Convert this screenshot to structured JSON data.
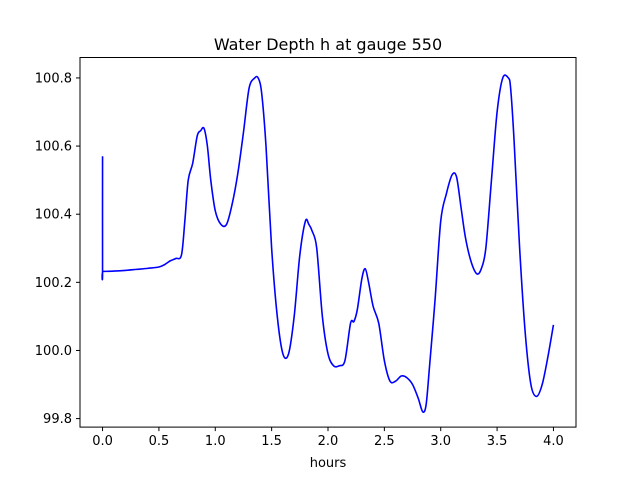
{
  "chart_data": {
    "type": "line",
    "title": "Water Depth h at gauge 550",
    "xlabel": "hours",
    "ylabel": "",
    "xlim": [
      -0.2,
      4.2
    ],
    "ylim": [
      99.775,
      100.86
    ],
    "grid": false,
    "legend": "none",
    "x_ticks": [
      0.0,
      0.5,
      1.0,
      1.5,
      2.0,
      2.5,
      3.0,
      3.5,
      4.0
    ],
    "x_tick_labels": [
      "0.0",
      "0.5",
      "1.0",
      "1.5",
      "2.0",
      "2.5",
      "3.0",
      "3.5",
      "4.0"
    ],
    "y_ticks": [
      99.8,
      100.0,
      100.2,
      100.4,
      100.6,
      100.8
    ],
    "y_tick_labels": [
      "99.8",
      "100.0",
      "100.2",
      "100.4",
      "100.6",
      "100.8"
    ],
    "series": [
      {
        "color": "#0000ff",
        "x": [
          0.0,
          0.0,
          0.005,
          0.1,
          0.2,
          0.3,
          0.4,
          0.5,
          0.55,
          0.6,
          0.65,
          0.7,
          0.73,
          0.76,
          0.8,
          0.84,
          0.87,
          0.9,
          0.93,
          0.96,
          1.0,
          1.05,
          1.1,
          1.15,
          1.2,
          1.25,
          1.3,
          1.35,
          1.38,
          1.41,
          1.45,
          1.5,
          1.55,
          1.6,
          1.65,
          1.7,
          1.75,
          1.8,
          1.83,
          1.86,
          1.9,
          1.95,
          2.0,
          2.05,
          2.1,
          2.15,
          2.2,
          2.23,
          2.26,
          2.3,
          2.33,
          2.36,
          2.4,
          2.45,
          2.5,
          2.55,
          2.6,
          2.65,
          2.7,
          2.75,
          2.8,
          2.84,
          2.87,
          2.9,
          2.95,
          3.0,
          3.05,
          3.1,
          3.14,
          3.18,
          3.22,
          3.27,
          3.32,
          3.36,
          3.4,
          3.45,
          3.5,
          3.55,
          3.6,
          3.62,
          3.65,
          3.7,
          3.75,
          3.8,
          3.85,
          3.9,
          3.95,
          4.0
        ],
        "y": [
          100.57,
          100.232,
          100.232,
          100.233,
          100.235,
          100.238,
          100.241,
          100.245,
          100.252,
          100.263,
          100.27,
          100.28,
          100.38,
          100.5,
          100.55,
          100.63,
          100.645,
          100.652,
          100.6,
          100.5,
          100.41,
          100.37,
          100.37,
          100.43,
          100.52,
          100.64,
          100.77,
          100.8,
          100.8,
          100.76,
          100.6,
          100.3,
          100.1,
          99.99,
          99.99,
          100.1,
          100.28,
          100.38,
          100.37,
          100.35,
          100.3,
          100.1,
          99.99,
          99.955,
          99.955,
          99.97,
          100.08,
          100.085,
          100.12,
          100.21,
          100.24,
          100.2,
          100.13,
          100.08,
          99.97,
          99.91,
          99.91,
          99.925,
          99.92,
          99.9,
          99.86,
          99.82,
          99.84,
          99.95,
          100.15,
          100.38,
          100.46,
          100.515,
          100.51,
          100.42,
          100.33,
          100.26,
          100.225,
          100.24,
          100.3,
          100.5,
          100.7,
          100.8,
          100.8,
          100.77,
          100.62,
          100.3,
          100.05,
          99.9,
          99.865,
          99.9,
          99.98,
          100.075
        ]
      }
    ]
  }
}
